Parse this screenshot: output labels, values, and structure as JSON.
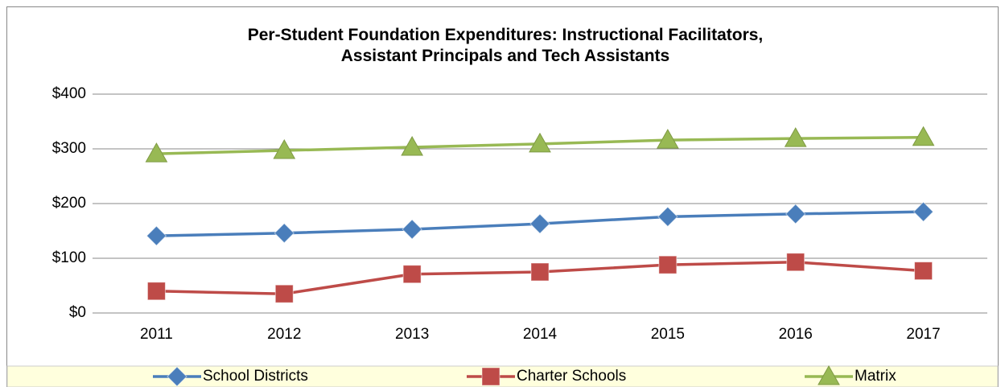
{
  "chart_data": {
    "type": "line",
    "title": "Per-Student Foundation Expenditures: Instructional Facilitators,\nAssistant Principals and Tech Assistants",
    "categories": [
      "2011",
      "2012",
      "2013",
      "2014",
      "2015",
      "2016",
      "2017"
    ],
    "series": [
      {
        "name": "School Districts",
        "color": "#4a7ebb",
        "marker": "diamond",
        "values": [
          141,
          146,
          153,
          163,
          176,
          181,
          185
        ]
      },
      {
        "name": "Charter Schools",
        "color": "#be4b48",
        "marker": "square",
        "values": [
          40,
          35,
          71,
          75,
          88,
          93,
          77
        ]
      },
      {
        "name": "Matrix",
        "color": "#98b954",
        "marker": "triangle",
        "values": [
          291,
          297,
          303,
          309,
          316,
          319,
          321
        ]
      }
    ],
    "ylim": [
      0,
      400
    ],
    "yticks": [
      {
        "value": 0,
        "label": "$0"
      },
      {
        "value": 100,
        "label": "$100"
      },
      {
        "value": 200,
        "label": "$200"
      },
      {
        "value": 300,
        "label": "$300"
      },
      {
        "value": 400,
        "label": "$400"
      }
    ],
    "grid": true,
    "legend": "bottom"
  }
}
